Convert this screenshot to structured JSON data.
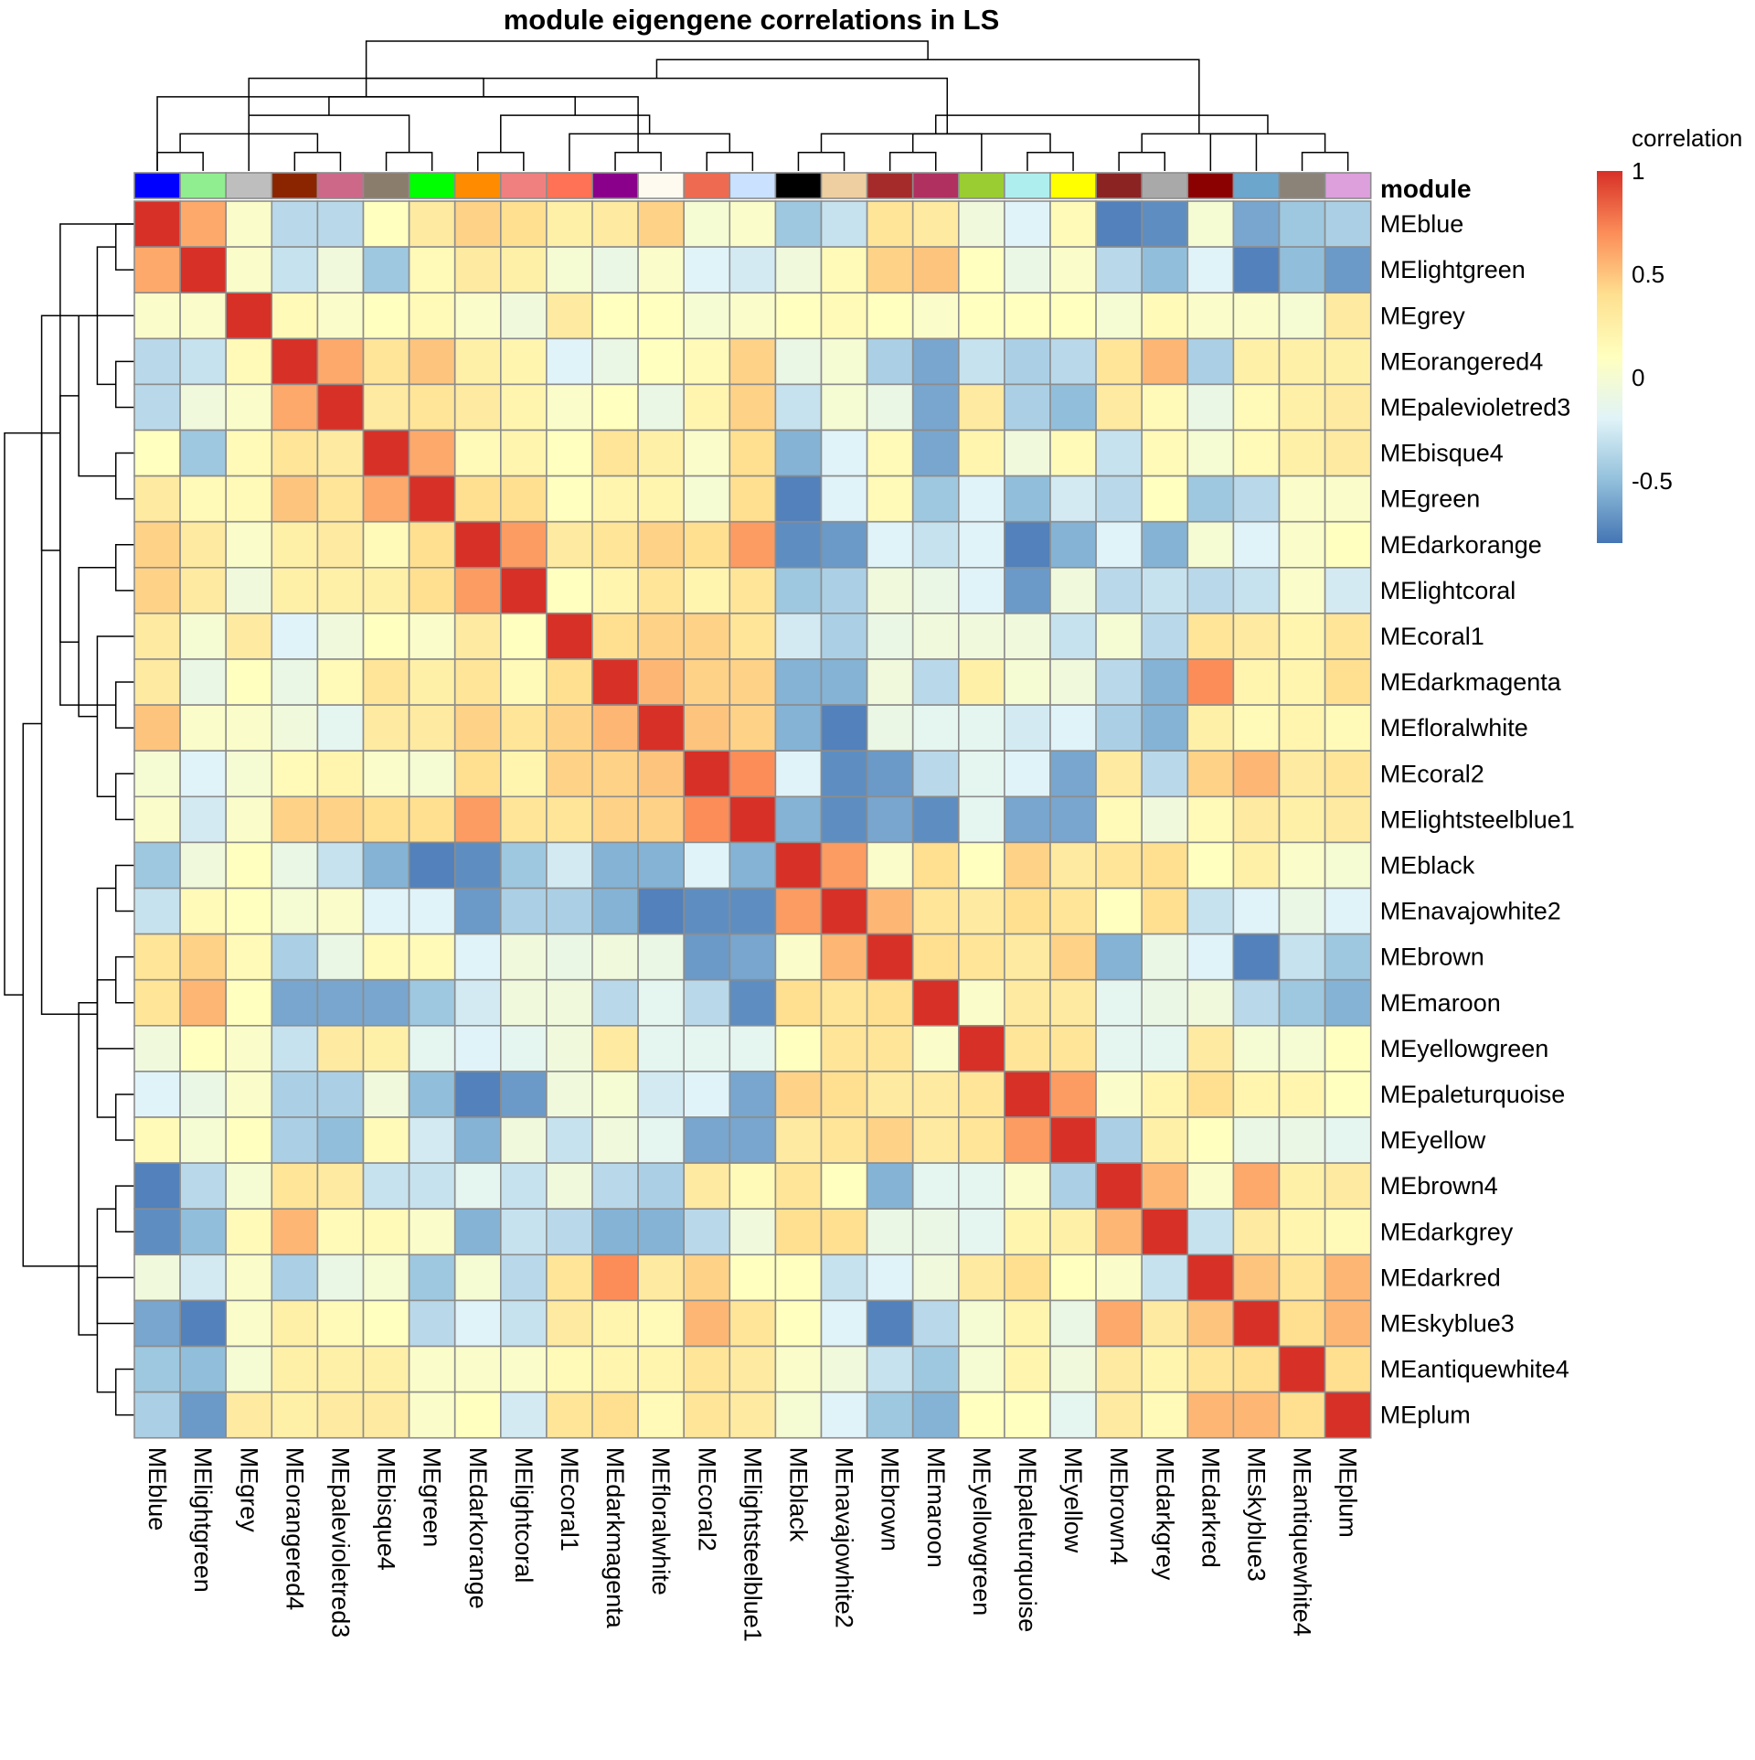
{
  "chart_data": {
    "type": "heatmap",
    "title": "module eigengene correlations in LS",
    "annotation_label": "module",
    "legend": {
      "title": "correlation",
      "ticks": [
        {
          "value": 1,
          "label": "1"
        },
        {
          "value": 0.5,
          "label": "0.5"
        },
        {
          "value": 0,
          "label": "0"
        },
        {
          "value": -0.5,
          "label": "-0.5"
        }
      ],
      "range": [
        -0.8,
        1
      ],
      "colors": [
        {
          "value": -0.8,
          "color": "#4575B4"
        },
        {
          "value": -0.5,
          "color": "#91BFDB"
        },
        {
          "value": -0.2,
          "color": "#E0F3F8"
        },
        {
          "value": 0.1,
          "color": "#FFFFBF"
        },
        {
          "value": 0.4,
          "color": "#FEE090"
        },
        {
          "value": 0.7,
          "color": "#FC8D59"
        },
        {
          "value": 1.0,
          "color": "#D73027"
        }
      ],
      "placement": "top-right"
    },
    "labels": [
      "MEblue",
      "MElightgreen",
      "MEgrey",
      "MEorangered4",
      "MEpalevioletred3",
      "MEbisque4",
      "MEgreen",
      "MEdarkorange",
      "MElightcoral",
      "MEcoral1",
      "MEdarkmagenta",
      "MEfloralwhite",
      "MEcoral2",
      "MElightsteelblue1",
      "MEblack",
      "MEnavajowhite2",
      "MEbrown",
      "MEmaroon",
      "MEyellowgreen",
      "MEpaleturquoise",
      "MEyellow",
      "MEbrown4",
      "MEdarkgrey",
      "MEdarkred",
      "MEskyblue3",
      "MEantiquewhite4",
      "MEplum"
    ],
    "module_colors": [
      "#0000FF",
      "#90EE90",
      "#BEBEBE",
      "#8B2500",
      "#CD6889",
      "#8B7D6B",
      "#00FF00",
      "#FF8C00",
      "#F08080",
      "#FF7256",
      "#8B008B",
      "#FFFAF0",
      "#EE6A50",
      "#CAE1FF",
      "#000000",
      "#EECFA1",
      "#A52A2A",
      "#B03060",
      "#9ACD32",
      "#AFEEEE",
      "#FFFF00",
      "#8B2323",
      "#A9A9A9",
      "#8B0000",
      "#6CA6CD",
      "#8B8378",
      "#DDA0DD"
    ],
    "values": [
      [
        1.0,
        0.6,
        0.05,
        -0.35,
        -0.35,
        0.1,
        0.3,
        0.45,
        0.4,
        0.25,
        0.3,
        0.45,
        0.0,
        0.05,
        -0.45,
        -0.3,
        0.35,
        0.3,
        -0.05,
        -0.2,
        0.15,
        -0.75,
        -0.7,
        0.0,
        -0.6,
        -0.45,
        -0.4
      ],
      [
        0.6,
        1.0,
        0.05,
        -0.3,
        -0.05,
        -0.45,
        0.15,
        0.3,
        0.25,
        0.0,
        -0.1,
        0.05,
        -0.2,
        -0.25,
        -0.05,
        0.15,
        0.45,
        0.5,
        0.1,
        -0.1,
        0.05,
        -0.35,
        -0.5,
        -0.2,
        -0.75,
        -0.5,
        -0.65
      ],
      [
        0.05,
        0.05,
        1.0,
        0.15,
        0.05,
        0.1,
        0.15,
        0.05,
        -0.05,
        0.3,
        0.1,
        0.1,
        0.0,
        0.05,
        0.1,
        0.15,
        0.1,
        0.05,
        0.1,
        0.1,
        0.1,
        0.0,
        0.15,
        0.05,
        0.05,
        0.0,
        0.3
      ],
      [
        -0.35,
        -0.3,
        0.15,
        1.0,
        0.6,
        0.35,
        0.5,
        0.25,
        0.2,
        -0.2,
        -0.1,
        0.1,
        0.15,
        0.45,
        -0.1,
        0.0,
        -0.4,
        -0.6,
        -0.3,
        -0.4,
        -0.35,
        0.35,
        0.55,
        -0.4,
        0.25,
        0.25,
        0.25
      ],
      [
        -0.35,
        -0.05,
        0.05,
        0.6,
        1.0,
        0.3,
        0.35,
        0.3,
        0.2,
        0.05,
        0.1,
        -0.1,
        0.2,
        0.45,
        -0.3,
        0.0,
        -0.1,
        -0.6,
        0.3,
        -0.4,
        -0.5,
        0.3,
        0.15,
        -0.1,
        0.15,
        0.25,
        0.3
      ],
      [
        0.1,
        -0.45,
        0.15,
        0.35,
        0.3,
        1.0,
        0.6,
        0.15,
        0.2,
        0.1,
        0.35,
        0.25,
        0.05,
        0.4,
        -0.55,
        -0.2,
        0.15,
        -0.6,
        0.2,
        -0.05,
        0.15,
        -0.3,
        0.15,
        0.0,
        0.15,
        0.25,
        0.3
      ],
      [
        0.3,
        0.15,
        0.15,
        0.5,
        0.35,
        0.6,
        1.0,
        0.4,
        0.4,
        0.1,
        0.2,
        0.2,
        0.0,
        0.4,
        -0.75,
        -0.2,
        0.15,
        -0.45,
        -0.2,
        -0.5,
        -0.25,
        -0.35,
        0.1,
        -0.45,
        -0.35,
        0.05,
        0.05
      ],
      [
        0.45,
        0.3,
        0.05,
        0.25,
        0.3,
        0.15,
        0.4,
        1.0,
        0.65,
        0.3,
        0.35,
        0.45,
        0.4,
        0.65,
        -0.7,
        -0.65,
        -0.2,
        -0.3,
        -0.2,
        -0.75,
        -0.55,
        -0.2,
        -0.55,
        0.0,
        -0.2,
        0.05,
        0.1
      ],
      [
        0.45,
        0.3,
        -0.05,
        0.25,
        0.25,
        0.25,
        0.4,
        0.65,
        1.0,
        0.1,
        0.2,
        0.35,
        0.2,
        0.35,
        -0.45,
        -0.4,
        -0.05,
        -0.1,
        -0.2,
        -0.65,
        -0.05,
        -0.35,
        -0.3,
        -0.35,
        -0.3,
        0.05,
        -0.25
      ],
      [
        0.3,
        0.0,
        0.3,
        -0.2,
        -0.05,
        0.1,
        0.05,
        0.3,
        0.1,
        1.0,
        0.4,
        0.45,
        0.45,
        0.35,
        -0.25,
        -0.4,
        -0.1,
        -0.05,
        -0.05,
        -0.05,
        -0.3,
        0.0,
        -0.35,
        0.35,
        0.3,
        0.2,
        0.35
      ],
      [
        0.3,
        -0.1,
        0.1,
        -0.1,
        0.15,
        0.35,
        0.25,
        0.35,
        0.15,
        0.4,
        1.0,
        0.55,
        0.45,
        0.45,
        -0.55,
        -0.55,
        -0.05,
        -0.35,
        0.25,
        0.0,
        -0.05,
        -0.35,
        -0.55,
        0.7,
        0.2,
        0.2,
        0.4
      ],
      [
        0.5,
        0.05,
        0.05,
        -0.05,
        -0.15,
        0.3,
        0.3,
        0.45,
        0.35,
        0.45,
        0.55,
        1.0,
        0.5,
        0.45,
        -0.55,
        -0.75,
        -0.1,
        -0.15,
        -0.15,
        -0.25,
        -0.2,
        -0.4,
        -0.55,
        0.25,
        0.15,
        0.2,
        0.15
      ],
      [
        0.0,
        -0.2,
        0.0,
        0.15,
        0.2,
        0.05,
        0.0,
        0.4,
        0.2,
        0.45,
        0.45,
        0.5,
        1.0,
        0.7,
        -0.2,
        -0.7,
        -0.65,
        -0.35,
        -0.15,
        -0.2,
        -0.6,
        0.3,
        -0.35,
        0.45,
        0.55,
        0.3,
        0.35
      ],
      [
        0.05,
        -0.25,
        0.05,
        0.45,
        0.45,
        0.4,
        0.4,
        0.65,
        0.35,
        0.35,
        0.45,
        0.45,
        0.7,
        1.0,
        -0.55,
        -0.7,
        -0.6,
        -0.7,
        -0.15,
        -0.6,
        -0.6,
        0.15,
        -0.05,
        0.15,
        0.3,
        0.25,
        0.3
      ],
      [
        -0.45,
        -0.05,
        0.1,
        -0.1,
        -0.3,
        -0.55,
        -0.75,
        -0.7,
        -0.45,
        -0.25,
        -0.55,
        -0.55,
        -0.2,
        -0.55,
        1.0,
        0.65,
        0.05,
        0.4,
        0.1,
        0.45,
        0.3,
        0.35,
        0.4,
        0.1,
        0.25,
        0.05,
        0.0
      ],
      [
        -0.3,
        0.15,
        0.1,
        0.0,
        0.05,
        -0.2,
        -0.2,
        -0.65,
        -0.4,
        -0.4,
        -0.55,
        -0.75,
        -0.7,
        -0.7,
        0.65,
        1.0,
        0.55,
        0.35,
        0.3,
        0.4,
        0.35,
        0.1,
        0.4,
        -0.3,
        -0.2,
        -0.1,
        -0.2
      ],
      [
        0.35,
        0.45,
        0.15,
        -0.4,
        -0.1,
        0.15,
        0.15,
        -0.2,
        -0.05,
        -0.1,
        -0.05,
        -0.1,
        -0.65,
        -0.6,
        0.05,
        0.55,
        1.0,
        0.4,
        0.35,
        0.3,
        0.45,
        -0.55,
        -0.1,
        -0.2,
        -0.75,
        -0.3,
        -0.45
      ],
      [
        0.35,
        0.55,
        0.1,
        -0.6,
        -0.6,
        -0.6,
        -0.45,
        -0.25,
        -0.05,
        -0.05,
        -0.35,
        -0.15,
        -0.35,
        -0.7,
        0.4,
        0.35,
        0.4,
        1.0,
        0.05,
        0.3,
        0.3,
        -0.15,
        -0.1,
        -0.05,
        -0.35,
        -0.45,
        -0.55
      ],
      [
        -0.05,
        0.1,
        0.05,
        -0.3,
        0.3,
        0.25,
        -0.15,
        -0.2,
        -0.15,
        -0.05,
        0.3,
        -0.15,
        -0.15,
        -0.15,
        0.1,
        0.35,
        0.35,
        0.05,
        1.0,
        0.35,
        0.35,
        -0.15,
        -0.15,
        0.3,
        0.0,
        0.0,
        0.1
      ],
      [
        -0.2,
        -0.1,
        0.05,
        -0.4,
        -0.4,
        -0.05,
        -0.5,
        -0.75,
        -0.65,
        -0.05,
        0.0,
        -0.25,
        -0.2,
        -0.6,
        0.45,
        0.4,
        0.3,
        0.3,
        0.35,
        1.0,
        0.65,
        0.05,
        0.2,
        0.4,
        0.2,
        0.2,
        0.1
      ],
      [
        0.15,
        0.0,
        0.1,
        -0.4,
        -0.5,
        0.15,
        -0.25,
        -0.55,
        -0.05,
        -0.3,
        -0.05,
        -0.15,
        -0.6,
        -0.6,
        0.3,
        0.35,
        0.45,
        0.3,
        0.35,
        0.65,
        1.0,
        -0.4,
        0.25,
        0.1,
        -0.1,
        -0.1,
        -0.15
      ],
      [
        -0.75,
        -0.35,
        0.0,
        0.35,
        0.3,
        -0.3,
        -0.3,
        -0.15,
        -0.3,
        -0.05,
        -0.35,
        -0.4,
        0.3,
        0.15,
        0.35,
        0.1,
        -0.55,
        -0.15,
        -0.15,
        0.05,
        -0.4,
        1.0,
        0.55,
        0.05,
        0.6,
        0.25,
        0.3
      ],
      [
        -0.7,
        -0.5,
        0.15,
        0.55,
        0.15,
        0.15,
        0.05,
        -0.55,
        -0.3,
        -0.35,
        -0.55,
        -0.55,
        -0.35,
        -0.05,
        0.4,
        0.4,
        -0.1,
        -0.1,
        -0.15,
        0.2,
        0.25,
        0.55,
        1.0,
        -0.3,
        0.3,
        0.2,
        0.15
      ],
      [
        -0.05,
        -0.25,
        0.05,
        -0.4,
        -0.1,
        0.0,
        -0.45,
        0.0,
        -0.35,
        0.35,
        0.7,
        0.3,
        0.45,
        0.1,
        0.1,
        -0.3,
        -0.2,
        -0.05,
        0.3,
        0.4,
        0.1,
        0.05,
        -0.3,
        1.0,
        0.5,
        0.35,
        0.55
      ],
      [
        -0.6,
        -0.75,
        0.05,
        0.25,
        0.15,
        0.1,
        -0.35,
        -0.2,
        -0.3,
        0.3,
        0.2,
        0.15,
        0.55,
        0.35,
        0.1,
        -0.2,
        -0.75,
        -0.35,
        0.0,
        0.2,
        -0.1,
        0.6,
        0.3,
        0.5,
        1.0,
        0.4,
        0.55
      ],
      [
        -0.45,
        -0.5,
        0.0,
        0.25,
        0.25,
        0.25,
        0.05,
        0.05,
        0.05,
        0.15,
        0.2,
        0.2,
        0.35,
        0.3,
        0.05,
        -0.05,
        -0.3,
        -0.45,
        0.0,
        0.2,
        -0.05,
        0.3,
        0.2,
        0.35,
        0.4,
        1.0,
        0.4
      ],
      [
        -0.4,
        -0.65,
        0.3,
        0.25,
        0.3,
        0.3,
        0.05,
        0.1,
        -0.25,
        0.35,
        0.4,
        0.15,
        0.35,
        0.3,
        0.0,
        -0.2,
        -0.45,
        -0.55,
        0.1,
        0.1,
        -0.15,
        0.3,
        0.15,
        0.55,
        0.55,
        0.4,
        1.0
      ]
    ],
    "dendrogram_merges": [
      [
        0,
        1
      ],
      [
        3,
        4
      ],
      [
        5,
        6
      ],
      [
        27,
        28
      ],
      [
        7,
        8
      ],
      [
        30,
        29
      ],
      [
        12,
        13
      ],
      [
        10,
        11
      ],
      [
        9,
        33
      ],
      [
        32,
        34
      ],
      [
        31,
        35
      ],
      [
        2,
        36
      ],
      [
        0,
        37
      ],
      [
        14,
        15
      ],
      [
        16,
        17
      ],
      [
        19,
        20
      ],
      [
        18,
        41
      ],
      [
        40,
        42
      ],
      [
        39,
        43
      ],
      [
        21,
        22
      ],
      [
        25,
        26
      ],
      [
        24,
        46
      ],
      [
        23,
        47
      ],
      [
        45,
        48
      ],
      [
        44,
        49
      ],
      [
        38,
        50
      ]
    ]
  }
}
